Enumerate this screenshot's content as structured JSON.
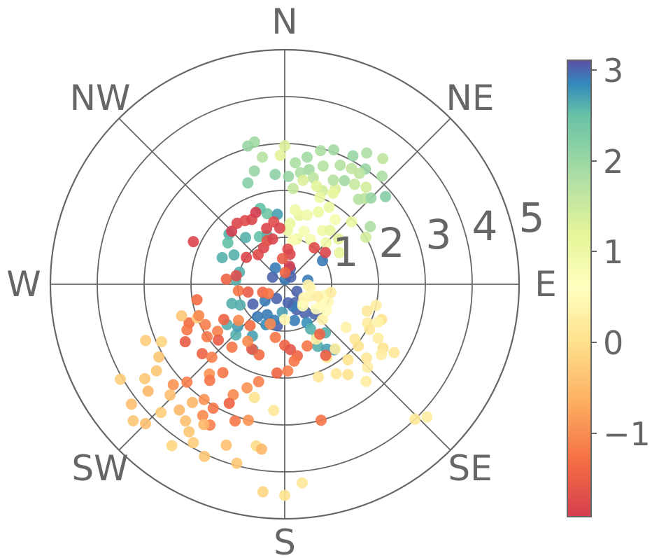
{
  "chart_data": {
    "type": "scatter",
    "projection": "polar",
    "theta_direction": "clockwise",
    "theta_zero": "N",
    "title": "",
    "direction_labels": [
      "N",
      "NE",
      "E",
      "SE",
      "S",
      "SW",
      "W",
      "NW"
    ],
    "r_tick_labels": [
      "1",
      "2",
      "3",
      "4",
      "5"
    ],
    "r_range": [
      0,
      5
    ],
    "grid": true,
    "colormap": "Spectral",
    "color_range": [
      -2,
      3.1
    ],
    "colorbar": {
      "position": "right",
      "tick_labels": [
        "3",
        "2",
        "1",
        "0",
        "−1"
      ],
      "tick_values": [
        3,
        2,
        1,
        0,
        -1
      ]
    },
    "points_axis": [
      "bearing_deg",
      "radius",
      "color_value"
    ],
    "points": [
      [
        4,
        0.1,
        2.9
      ],
      [
        40,
        0.2,
        3.0
      ],
      [
        120,
        0.3,
        3.0
      ],
      [
        150,
        0.45,
        3.0
      ],
      [
        155,
        0.6,
        3.0
      ],
      [
        160,
        0.5,
        2.9
      ],
      [
        170,
        0.4,
        3.0
      ],
      [
        210,
        0.35,
        3.0
      ],
      [
        230,
        0.55,
        2.9
      ],
      [
        300,
        0.3,
        3.0
      ],
      [
        330,
        0.4,
        2.9
      ],
      [
        20,
        0.35,
        3.0
      ],
      [
        80,
        0.5,
        2.9
      ],
      [
        145,
        0.75,
        3.0
      ],
      [
        165,
        0.8,
        2.9
      ],
      [
        135,
        0.9,
        3.0
      ],
      [
        150,
        0.95,
        2.8
      ],
      [
        58,
        0.95,
        2.9
      ],
      [
        238,
        0.8,
        3.0
      ],
      [
        220,
        0.9,
        2.9
      ],
      [
        205,
        0.95,
        2.8
      ],
      [
        190,
        0.9,
        3.0
      ],
      [
        196,
        0.8,
        2.9
      ],
      [
        210,
        0.75,
        2.9
      ],
      [
        185,
        0.6,
        2.7
      ],
      [
        275,
        1.05,
        2.6
      ],
      [
        285,
        1.0,
        2.6
      ],
      [
        320,
        1.3,
        2.6
      ],
      [
        312,
        1.6,
        2.6
      ],
      [
        306,
        1.5,
        2.5
      ],
      [
        293,
        1.45,
        2.6
      ],
      [
        300,
        1.25,
        2.6
      ],
      [
        332,
        1.15,
        2.5
      ],
      [
        340,
        1.1,
        2.6
      ],
      [
        346,
        1.55,
        2.4
      ],
      [
        342,
        1.7,
        2.5
      ],
      [
        354,
        1.5,
        2.7
      ],
      [
        250,
        1.2,
        2.6
      ],
      [
        245,
        1.05,
        2.6
      ],
      [
        224,
        1.5,
        2.6
      ],
      [
        212,
        1.3,
        2.7
      ],
      [
        150,
        1.1,
        2.6
      ],
      [
        148,
        1.3,
        2.5
      ],
      [
        140,
        1.35,
        2.6
      ],
      [
        152,
        1.5,
        2.6
      ],
      [
        147,
        1.65,
        2.7
      ],
      [
        143,
        1.75,
        2.7
      ],
      [
        235,
        1.5,
        2.6
      ],
      [
        228,
        1.35,
        2.7
      ],
      [
        206,
        1.55,
        2.7
      ],
      [
        340,
        2.3,
        2.2
      ],
      [
        345,
        2.5,
        2.0
      ],
      [
        355,
        2.35,
        2.1
      ],
      [
        2,
        2.3,
        2.0
      ],
      [
        8,
        2.4,
        1.8
      ],
      [
        12,
        2.5,
        1.9
      ],
      [
        18,
        2.65,
        1.7
      ],
      [
        25,
        2.8,
        1.7
      ],
      [
        30,
        2.85,
        1.6
      ],
      [
        35,
        2.6,
        1.5
      ],
      [
        28,
        2.3,
        1.3
      ],
      [
        22,
        2.15,
        1.4
      ],
      [
        15,
        2.35,
        1.6
      ],
      [
        5,
        2.05,
        1.5
      ],
      [
        10,
        2.75,
        1.9
      ],
      [
        20,
        3.05,
        1.9
      ],
      [
        28,
        3.1,
        2.0
      ],
      [
        32,
        3.3,
        1.8
      ],
      [
        35,
        3.0,
        2.0
      ],
      [
        40,
        2.7,
        1.4
      ],
      [
        43,
        2.5,
        1.6
      ],
      [
        45,
        2.6,
        2.0
      ],
      [
        41,
        2.4,
        1.7
      ],
      [
        49,
        2.85,
        2.2
      ],
      [
        348,
        3.1,
        1.9
      ],
      [
        345,
        3.05,
        2.0
      ],
      [
        350,
        2.75,
        1.7
      ],
      [
        5,
        2.6,
        1.8
      ],
      [
        15,
        2.95,
        1.8
      ],
      [
        38,
        3.4,
        1.6
      ],
      [
        42,
        3.1,
        1.8
      ],
      [
        34,
        2.85,
        1.6
      ],
      [
        30,
        2.55,
        1.9
      ],
      [
        25,
        2.45,
        1.7
      ],
      [
        360,
        2.95,
        1.3
      ],
      [
        358,
        2.75,
        1.2
      ],
      [
        10,
        2.25,
        1.3
      ],
      [
        18,
        2.2,
        1.2
      ],
      [
        56,
        2.2,
        1.8
      ],
      [
        60,
        2.0,
        1.4
      ],
      [
        5,
        1.3,
        1.0
      ],
      [
        12,
        1.5,
        1.1
      ],
      [
        18,
        1.55,
        0.9
      ],
      [
        25,
        1.7,
        1.0
      ],
      [
        30,
        1.9,
        1.0
      ],
      [
        35,
        1.4,
        0.9
      ],
      [
        40,
        1.5,
        1.1
      ],
      [
        50,
        1.5,
        1.2
      ],
      [
        60,
        1.35,
        1.1
      ],
      [
        20,
        1.2,
        0.8
      ],
      [
        15,
        1.0,
        0.9
      ],
      [
        10,
        0.95,
        0.7
      ],
      [
        30,
        1.1,
        0.8
      ],
      [
        45,
        1.25,
        0.9
      ],
      [
        3,
        1.15,
        1.0
      ],
      [
        8,
        1.6,
        0.9
      ],
      [
        22,
        2.0,
        1.0
      ],
      [
        28,
        2.2,
        1.1
      ],
      [
        38,
        1.75,
        0.8
      ],
      [
        47,
        1.95,
        1.0
      ],
      [
        115,
        0.6,
        0.3
      ],
      [
        125,
        0.5,
        0.4
      ],
      [
        135,
        0.55,
        0.3
      ],
      [
        112,
        1.0,
        0.4
      ],
      [
        120,
        0.9,
        0.5
      ],
      [
        150,
        1.35,
        0.2
      ],
      [
        180,
        0.75,
        0.4
      ],
      [
        105,
        0.9,
        0.5
      ],
      [
        128,
        0.85,
        0.5
      ],
      [
        133,
        1.1,
        0.3
      ],
      [
        100,
        1.0,
        0.2
      ],
      [
        140,
        0.6,
        0.5
      ],
      [
        98,
        0.55,
        0.4
      ],
      [
        92,
        0.5,
        0.3
      ],
      [
        110,
        0.75,
        0.2
      ],
      [
        122,
        1.05,
        0.5
      ],
      [
        125,
        1.6,
        0.3
      ],
      [
        128,
        1.9,
        0.1
      ],
      [
        115,
        1.95,
        0.2
      ],
      [
        110,
        2.2,
        0.0
      ],
      [
        112,
        2.15,
        0.3
      ],
      [
        118,
        2.05,
        0.1
      ],
      [
        120,
        2.3,
        0.2
      ],
      [
        123,
        2.5,
        0.0
      ],
      [
        126,
        2.55,
        0.2
      ],
      [
        132,
        2.35,
        0.1
      ],
      [
        140,
        2.1,
        0.0
      ],
      [
        150,
        2.2,
        0.1
      ],
      [
        135,
        2.5,
        0.2
      ],
      [
        122,
        2.75,
        0.1
      ],
      [
        103,
        2.0,
        0.2
      ],
      [
        108,
        1.85,
        0.1
      ],
      [
        130,
        2.05,
        0.0
      ],
      [
        145,
        2.35,
        0.0
      ],
      [
        140,
        2.7,
        0.2
      ],
      [
        136,
        4.0,
        0.1
      ],
      [
        133,
        4.15,
        0.2
      ],
      [
        160,
        2.1,
        0.1
      ],
      [
        142,
        1.75,
        0.2
      ],
      [
        150,
        1.8,
        0.0
      ],
      [
        185,
        2.7,
        0.1
      ],
      [
        195,
        2.5,
        0.0
      ],
      [
        175,
        4.25,
        0.1
      ],
      [
        180,
        4.5,
        0.0
      ],
      [
        186,
        4.45,
        -0.2
      ],
      [
        190,
        3.5,
        -0.1
      ],
      [
        200,
        0.9,
        -1.1
      ],
      [
        190,
        1.15,
        -1.3
      ],
      [
        180,
        1.3,
        -1.5
      ],
      [
        175,
        1.4,
        -1.7
      ],
      [
        170,
        1.55,
        -1.5
      ],
      [
        178,
        1.85,
        -1.2
      ],
      [
        173,
        1.65,
        -1.3
      ],
      [
        185,
        1.9,
        -1.5
      ],
      [
        145,
        1.3,
        -1.5
      ],
      [
        150,
        1.75,
        -1.6
      ],
      [
        160,
        1.4,
        -1.3
      ],
      [
        200,
        1.6,
        -1.4
      ],
      [
        207,
        1.55,
        -1.6
      ],
      [
        213,
        1.45,
        -1.1
      ],
      [
        220,
        1.75,
        -1.3
      ],
      [
        220,
        1.15,
        -1.4
      ],
      [
        232,
        1.25,
        -1.1
      ],
      [
        235,
        1.75,
        -1.2
      ],
      [
        240,
        1.5,
        -1.5
      ],
      [
        248,
        2.2,
        -1.4
      ],
      [
        240,
        2.45,
        -1.6
      ],
      [
        236,
        2.0,
        -1.3
      ],
      [
        230,
        2.3,
        -1.5
      ],
      [
        225,
        2.2,
        -1.2
      ],
      [
        220,
        2.5,
        -1.0
      ],
      [
        215,
        2.3,
        -1.3
      ],
      [
        205,
        2.6,
        -1.1
      ],
      [
        205,
        2.8,
        -1.5
      ],
      [
        200,
        2.35,
        -1.0
      ],
      [
        195,
        2.15,
        -1.2
      ],
      [
        210,
        3.05,
        -1.3
      ],
      [
        212,
        3.3,
        -1.1
      ],
      [
        215,
        3.0,
        -1.0
      ],
      [
        208,
        3.4,
        -1.2
      ],
      [
        200,
        3.1,
        -1.3
      ],
      [
        165,
        3.0,
        -1.3
      ],
      [
        225,
        2.95,
        -1.2
      ],
      [
        228,
        3.2,
        -1.0
      ],
      [
        195,
        3.0,
        -1.0
      ],
      [
        218,
        2.6,
        -1.3
      ],
      [
        230,
        1.85,
        -1.6
      ],
      [
        243,
        1.9,
        -1.2
      ],
      [
        245,
        2.9,
        -0.2
      ],
      [
        248,
        3.2,
        -0.3
      ],
      [
        240,
        3.1,
        -0.4
      ],
      [
        236,
        3.6,
        -0.4
      ],
      [
        232,
        3.7,
        -0.6
      ],
      [
        226,
        3.4,
        -0.5
      ],
      [
        224,
        3.8,
        -0.3
      ],
      [
        220,
        3.5,
        -0.6
      ],
      [
        216,
        3.6,
        -0.5
      ],
      [
        213,
        3.75,
        -0.4
      ],
      [
        210,
        3.9,
        -0.3
      ],
      [
        205,
        4.05,
        -0.4
      ],
      [
        210,
        3.45,
        -0.6
      ],
      [
        200,
        3.65,
        -0.5
      ],
      [
        215,
        4.2,
        -0.2
      ],
      [
        225,
        4.2,
        -0.5
      ],
      [
        236,
        3.3,
        -0.4
      ],
      [
        253,
        2.3,
        -0.4
      ],
      [
        249,
        2.0,
        -0.3
      ],
      [
        218,
        3.2,
        -0.6
      ],
      [
        232,
        4.15,
        -0.5
      ],
      [
        228,
        4.35,
        -0.4
      ],
      [
        240,
        4.05,
        -0.3
      ],
      [
        195,
        3.95,
        -0.4
      ],
      [
        188,
        3.55,
        -0.6
      ],
      [
        305,
        1.0,
        -1.9
      ],
      [
        318,
        0.85,
        -1.8
      ],
      [
        330,
        0.9,
        -1.9
      ],
      [
        338,
        1.0,
        -1.7
      ],
      [
        345,
        1.0,
        -1.9
      ],
      [
        315,
        1.6,
        -2.0
      ],
      [
        322,
        1.65,
        -1.9
      ],
      [
        328,
        1.6,
        -1.8
      ],
      [
        333,
        1.55,
        -1.9
      ],
      [
        338,
        1.65,
        -2.0
      ],
      [
        342,
        1.25,
        -1.9
      ],
      [
        350,
        1.35,
        -1.8
      ],
      [
        355,
        1.2,
        -1.9
      ],
      [
        5,
        0.75,
        -1.8
      ],
      [
        10,
        0.65,
        -1.9
      ],
      [
        15,
        0.4,
        -2.0
      ],
      [
        52,
        1.1,
        -1.9
      ],
      [
        39,
        1.0,
        -1.8
      ],
      [
        295,
        2.15,
        -1.9
      ],
      [
        275,
        1.25,
        -1.5
      ],
      [
        280,
        1.05,
        -1.8
      ],
      [
        262,
        1.0,
        -1.3
      ],
      [
        258,
        0.8,
        -1.6
      ],
      [
        260,
        1.9,
        -1.4
      ],
      [
        250,
        1.95,
        -1.1
      ],
      [
        245,
        2.3,
        -1.3
      ],
      [
        355,
        0.55,
        -1.6
      ],
      [
        2,
        0.25,
        -1.5
      ],
      [
        250,
        0.5,
        -1.5
      ],
      [
        240,
        0.4,
        -1.3
      ]
    ]
  }
}
